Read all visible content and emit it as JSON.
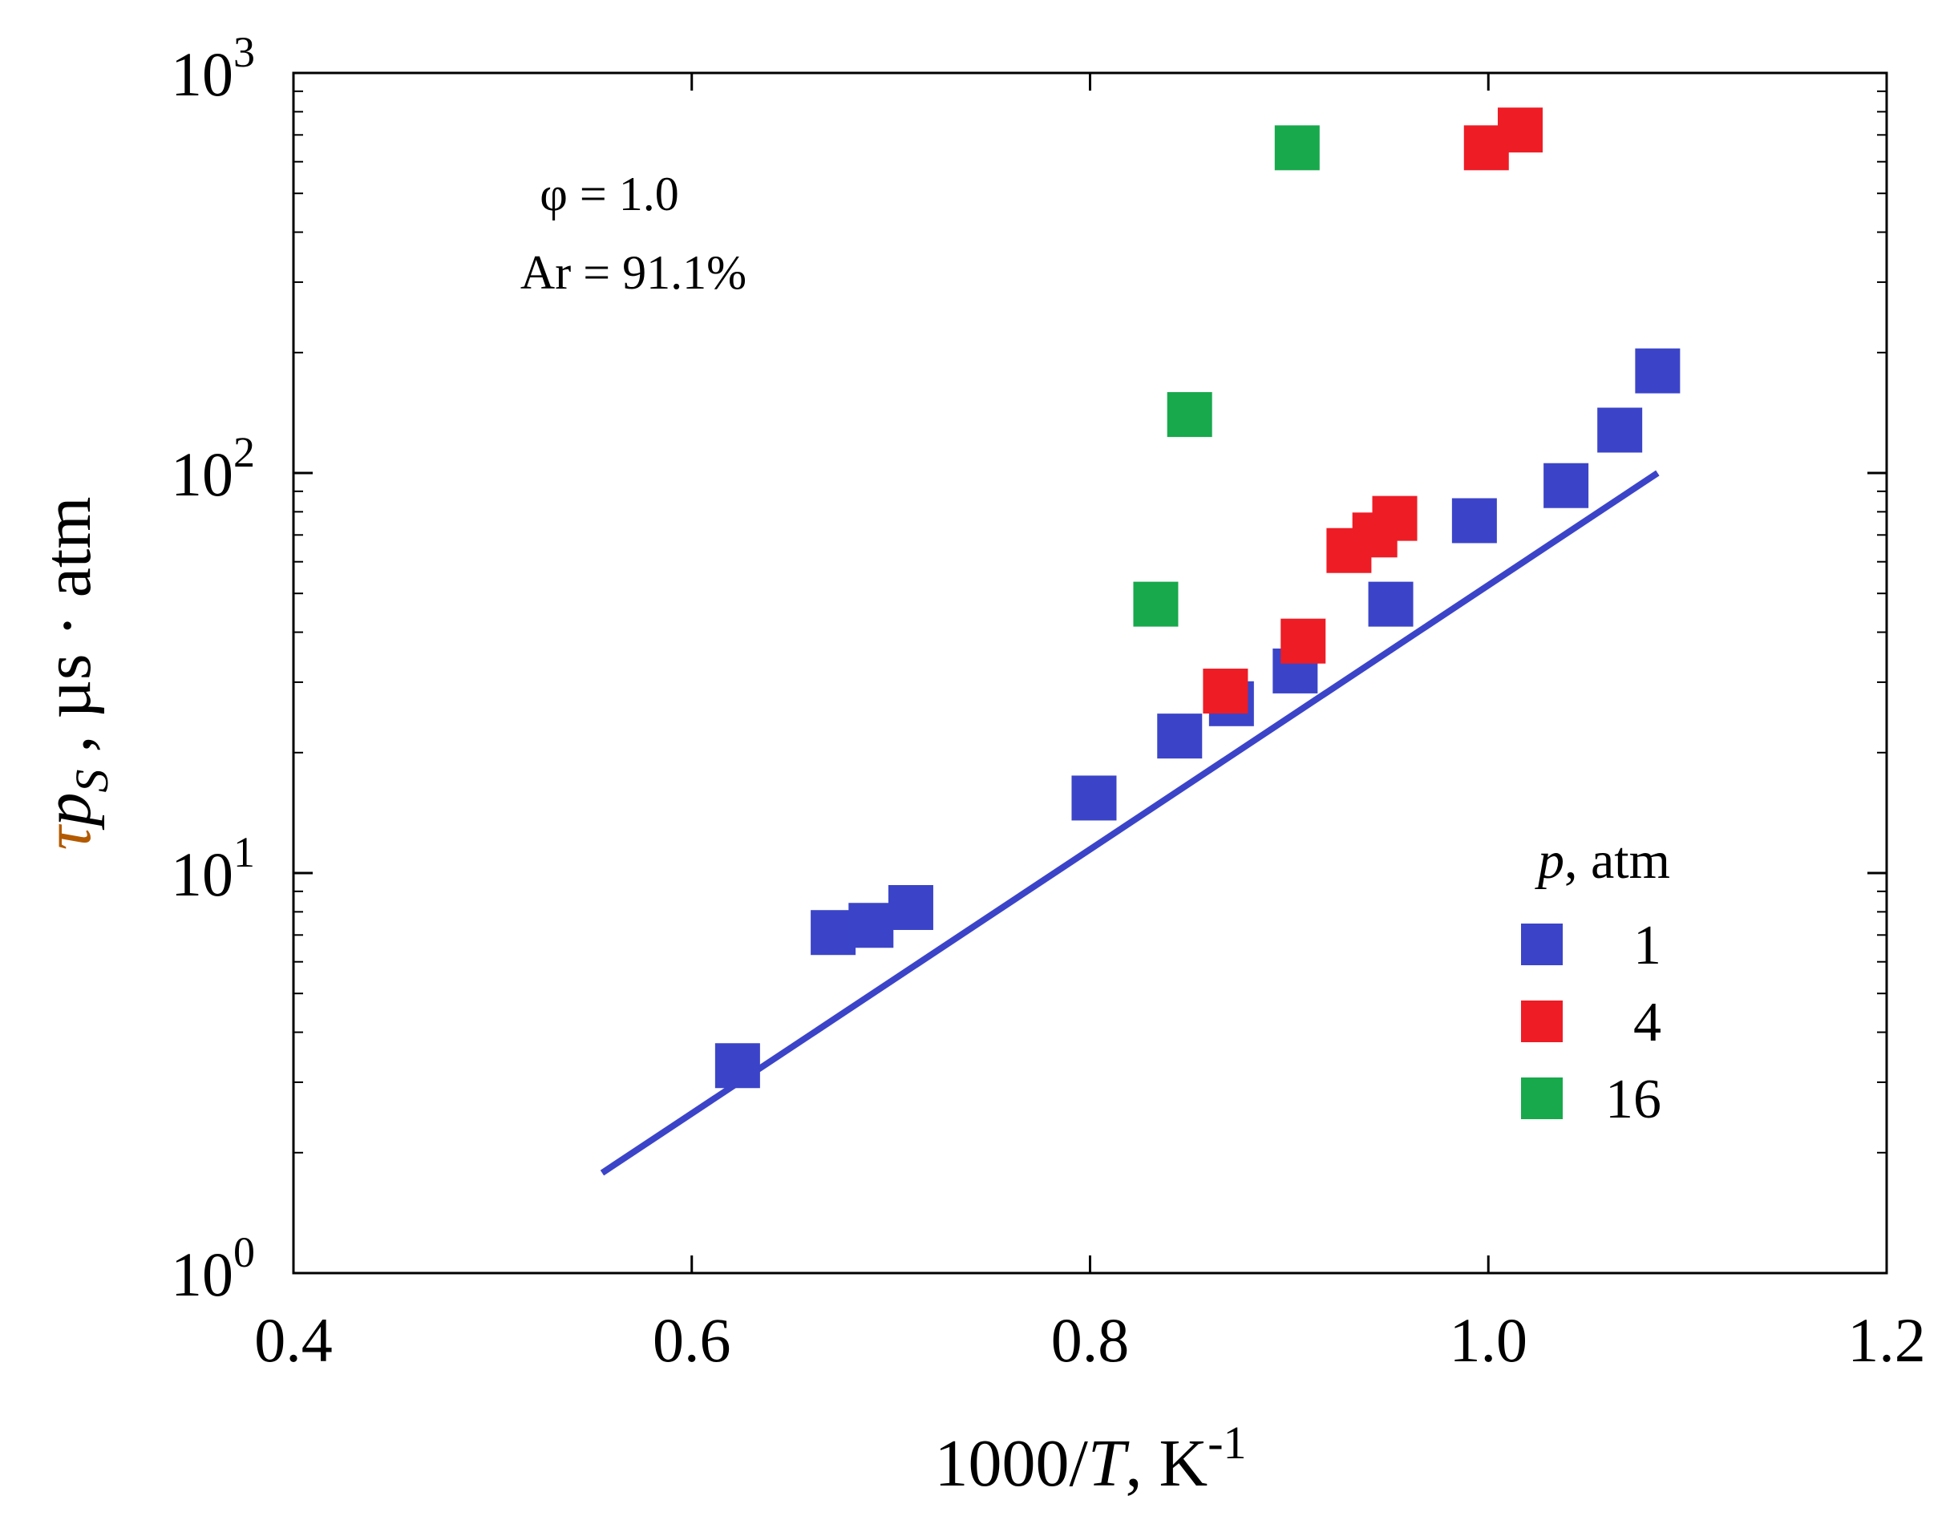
{
  "chart_data": {
    "type": "scatter",
    "annotations": {
      "line1": "φ = 1.0",
      "line2": "Ar = 91.1%"
    },
    "xlabel": {
      "main": "1000/",
      "var": "T",
      "unit": ", K",
      "exp": "-1"
    },
    "ylabel": {
      "tau": "τ",
      "p": "p",
      "sub": "S",
      "sep": " ,",
      "unit": " µs · atm"
    },
    "xlim": [
      0.4,
      1.2
    ],
    "ylim": [
      1,
      1000
    ],
    "yscale": "log",
    "grid": false,
    "x_ticks": [
      {
        "value": 0.4,
        "label": "0.4"
      },
      {
        "value": 0.6,
        "label": "0.6"
      },
      {
        "value": 0.8,
        "label": "0.8"
      },
      {
        "value": 1.0,
        "label": "1.0"
      },
      {
        "value": 1.2,
        "label": "1.2"
      }
    ],
    "y_ticks": [
      {
        "value": 1,
        "base": "10",
        "exp": "0"
      },
      {
        "value": 10,
        "base": "10",
        "exp": "1"
      },
      {
        "value": 100,
        "base": "10",
        "exp": "2"
      },
      {
        "value": 1000,
        "base": "10",
        "exp": "3"
      }
    ],
    "legend": {
      "title_var": "p",
      "title_unit": ", atm",
      "position": "lower-right"
    },
    "series": [
      {
        "name": "1",
        "color": "#3b44c8",
        "points": [
          {
            "x": 0.623,
            "y": 3.3
          },
          {
            "x": 0.671,
            "y": 7.1
          },
          {
            "x": 0.69,
            "y": 7.4
          },
          {
            "x": 0.71,
            "y": 8.2
          },
          {
            "x": 0.802,
            "y": 15.4
          },
          {
            "x": 0.845,
            "y": 22
          },
          {
            "x": 0.871,
            "y": 26.5
          },
          {
            "x": 0.903,
            "y": 32
          },
          {
            "x": 0.951,
            "y": 47
          },
          {
            "x": 0.993,
            "y": 76
          },
          {
            "x": 1.039,
            "y": 93
          },
          {
            "x": 1.066,
            "y": 128
          },
          {
            "x": 1.085,
            "y": 180
          }
        ]
      },
      {
        "name": "4",
        "color": "#ee1c25",
        "points": [
          {
            "x": 0.868,
            "y": 28.5
          },
          {
            "x": 0.907,
            "y": 38
          },
          {
            "x": 0.93,
            "y": 64
          },
          {
            "x": 0.943,
            "y": 70
          },
          {
            "x": 0.953,
            "y": 77
          },
          {
            "x": 0.999,
            "y": 650
          },
          {
            "x": 1.016,
            "y": 720
          }
        ]
      },
      {
        "name": "16",
        "color": "#17a94c",
        "points": [
          {
            "x": 0.833,
            "y": 47
          },
          {
            "x": 0.85,
            "y": 140
          },
          {
            "x": 0.904,
            "y": 650
          }
        ]
      }
    ],
    "fit_line": {
      "color": "#3b44c8",
      "points": [
        {
          "x": 0.555,
          "y": 1.78
        },
        {
          "x": 1.085,
          "y": 100
        }
      ]
    }
  }
}
